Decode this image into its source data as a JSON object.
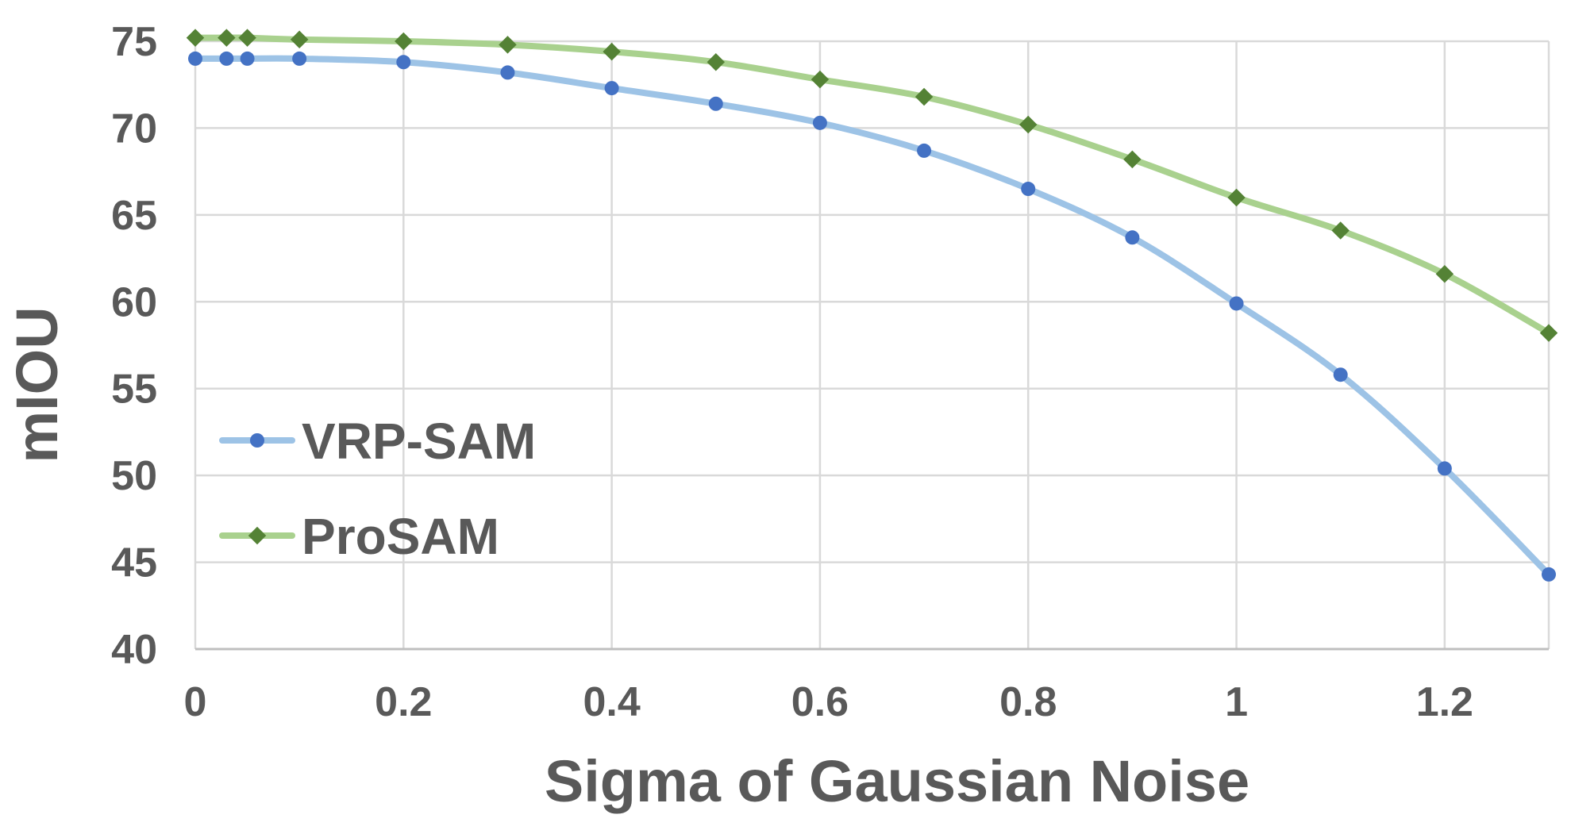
{
  "chart_data": {
    "type": "line",
    "title": "",
    "xlabel": "Sigma of Gaussian Noise",
    "ylabel": "mIOU",
    "xlim": [
      0,
      1.3
    ],
    "ylim": [
      40,
      75
    ],
    "x_ticks": [
      "0",
      "0.2",
      "0.4",
      "0.6",
      "0.8",
      "1",
      "1.2"
    ],
    "x_tick_values": [
      0,
      0.2,
      0.4,
      0.6,
      0.8,
      1.0,
      1.2
    ],
    "y_ticks": [
      "40",
      "45",
      "50",
      "55",
      "60",
      "65",
      "70",
      "75"
    ],
    "y_tick_values": [
      40,
      45,
      50,
      55,
      60,
      65,
      70,
      75
    ],
    "grid": true,
    "legend_position": "left-middle",
    "x": [
      0,
      0.03,
      0.05,
      0.1,
      0.2,
      0.3,
      0.4,
      0.5,
      0.6,
      0.7,
      0.8,
      0.9,
      1.0,
      1.1,
      1.2,
      1.3
    ],
    "series": [
      {
        "name": "VRP-SAM",
        "line_color": "#9dc3e6",
        "marker_color": "#4472c4",
        "marker": "circle",
        "values": [
          74.0,
          74.0,
          74.0,
          74.0,
          73.8,
          73.2,
          72.3,
          71.4,
          70.3,
          68.7,
          66.5,
          63.7,
          59.9,
          55.8,
          50.4,
          44.3
        ]
      },
      {
        "name": "ProSAM",
        "line_color": "#a9d18e",
        "marker_color": "#548235",
        "marker": "diamond",
        "values": [
          75.2,
          75.2,
          75.2,
          75.1,
          75.0,
          74.8,
          74.4,
          73.8,
          72.8,
          71.8,
          70.2,
          68.2,
          66.0,
          64.1,
          61.6,
          58.2
        ]
      }
    ]
  }
}
